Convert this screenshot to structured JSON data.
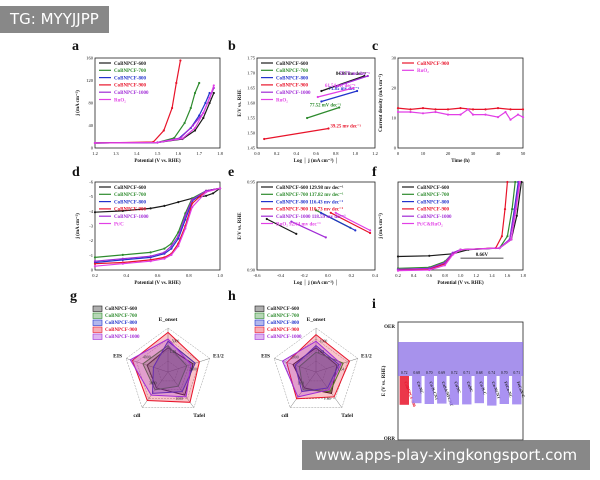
{
  "watermark": {
    "top": "TG: MYYJJPP",
    "bottom": "www.apps-play-xingkongsport.com"
  },
  "palette": {
    "c600": "#1a1a1a",
    "c700": "#2e8b2e",
    "c800": "#2233cc",
    "c900": "#e8142a",
    "c1000": "#a12bd6",
    "ref": "#e23fe6",
    "cyan": "#2ab7d6"
  },
  "chart_data": [
    {
      "panel": "a",
      "type": "line",
      "xlabel": "Potential (V vs. RHE)",
      "ylabel": "j (mA cm⁻²)",
      "xlim": [
        1.2,
        1.8
      ],
      "ylim": [
        -10,
        170
      ],
      "xticks": [
        "1.2",
        "1.3",
        "1.4",
        "1.5",
        "1.6",
        "1.7",
        "1.8"
      ],
      "yticks": [
        "0",
        "40",
        "80",
        "120",
        "160"
      ],
      "series": [
        {
          "name": "CoBNPCF-600",
          "x": [
            1.2,
            1.5,
            1.62,
            1.68,
            1.72,
            1.75,
            1.77
          ],
          "y": [
            0,
            1,
            8,
            25,
            50,
            80,
            100
          ]
        },
        {
          "name": "CoBNPCF-700",
          "x": [
            1.2,
            1.5,
            1.58,
            1.63,
            1.66,
            1.68,
            1.7
          ],
          "y": [
            0,
            1,
            10,
            40,
            70,
            100,
            120
          ]
        },
        {
          "name": "CoBNPCF-800",
          "x": [
            1.2,
            1.5,
            1.6,
            1.66,
            1.7,
            1.73,
            1.75
          ],
          "y": [
            0,
            1,
            8,
            30,
            55,
            80,
            100
          ]
        },
        {
          "name": "CoBNPCF-900",
          "x": [
            1.2,
            1.48,
            1.53,
            1.57,
            1.59,
            1.61
          ],
          "y": [
            0,
            2,
            25,
            70,
            120,
            165
          ]
        },
        {
          "name": "CoBNPCF-1000",
          "x": [
            1.2,
            1.5,
            1.61,
            1.67,
            1.72,
            1.75,
            1.77
          ],
          "y": [
            0,
            1,
            10,
            35,
            60,
            90,
            110
          ]
        },
        {
          "name": "RuO₂",
          "x": [
            1.2,
            1.5,
            1.62,
            1.68,
            1.72,
            1.75,
            1.77
          ],
          "y": [
            0,
            1,
            9,
            30,
            60,
            90,
            115
          ]
        }
      ]
    },
    {
      "panel": "b",
      "type": "line",
      "xlabel": "Log │ j (mA cm⁻²) │",
      "ylabel": "E/V vs. RHE",
      "xlim": [
        -0.3,
        1.35
      ],
      "ylim": [
        1.45,
        1.75
      ],
      "xticks": [
        "0.0",
        "0.2",
        "0.4",
        "0.6",
        "0.8",
        "1.0",
        "1.2"
      ],
      "yticks": [
        "1.45",
        "1.50",
        "1.55",
        "1.60",
        "1.65",
        "1.70",
        "1.75"
      ],
      "series": [
        {
          "name": "CoBNPCF-600",
          "x": [
            0.6,
            1.2
          ],
          "y": [
            1.64,
            1.69
          ],
          "label": "84.68 mv dec⁻¹"
        },
        {
          "name": "CoBNPCF-700",
          "x": [
            0.4,
            0.85
          ],
          "y": [
            1.55,
            1.585
          ],
          "label": "77.52 mV dec⁻¹"
        },
        {
          "name": "CoBNPCF-800",
          "x": [
            0.6,
            1.1
          ],
          "y": [
            1.605,
            1.64
          ],
          "label": "71.85 mv dec⁻¹"
        },
        {
          "name": "CoBNPCF-900",
          "x": [
            -0.2,
            0.7
          ],
          "y": [
            1.48,
            1.515
          ],
          "label": "39.25 mv dec⁻¹"
        },
        {
          "name": "CoBNPCF-1000",
          "x": [
            0.8,
            1.25
          ],
          "y": [
            1.655,
            1.69
          ],
          "label": "73.75 mv dec⁻¹"
        },
        {
          "name": "RuO₂",
          "x": [
            0.55,
            1.05
          ],
          "y": [
            1.62,
            1.65
          ],
          "label": "61.54 mv dec⁻¹"
        }
      ]
    },
    {
      "panel": "c",
      "type": "line",
      "xlabel": "Time (h)",
      "ylabel": "Current density (mA cm⁻²)",
      "xlim": [
        0,
        50
      ],
      "ylim": [
        -5,
        30
      ],
      "xticks": [
        "0",
        "10",
        "20",
        "30",
        "40",
        "50"
      ],
      "yticks": [
        "0",
        "10",
        "20",
        "30"
      ],
      "series": [
        {
          "name": "CoBNPCF-900",
          "x": [
            0,
            5,
            10,
            15,
            20,
            25,
            30,
            35,
            40,
            45,
            50
          ],
          "y": [
            10.5,
            10,
            10.5,
            10,
            10,
            10.5,
            10,
            10,
            10.5,
            10,
            10
          ]
        },
        {
          "name": "RuO₂",
          "x": [
            0,
            5,
            10,
            15,
            20,
            25,
            28,
            30,
            35,
            40,
            43,
            45,
            48,
            50
          ],
          "y": [
            9,
            9,
            8.5,
            9,
            8,
            8,
            10,
            8,
            8,
            7,
            9,
            6,
            8,
            7
          ]
        }
      ]
    },
    {
      "panel": "d",
      "type": "line",
      "xlabel": "Potential (V vs. RHE)",
      "ylabel": "j (mA cm⁻²)",
      "xlim": [
        0.2,
        1.1
      ],
      "ylim": [
        -6.5,
        0.5
      ],
      "xticks": [
        "0.2",
        "0.4",
        "0.6",
        "0.8",
        "1.0"
      ],
      "yticks": [
        "0",
        "-1",
        "-2",
        "-3",
        "-4",
        "-5",
        "-6"
      ],
      "series": [
        {
          "name": "CoBNPCF-600",
          "x": [
            0.2,
            0.4,
            0.6,
            0.7,
            0.8,
            0.9,
            1.0,
            1.05,
            1.1
          ],
          "y": [
            -1.9,
            -1.8,
            -1.6,
            -1.4,
            -1.1,
            -0.8,
            -0.6,
            -0.4,
            0
          ]
        },
        {
          "name": "CoBNPCF-700",
          "x": [
            0.2,
            0.4,
            0.6,
            0.7,
            0.75,
            0.8,
            0.85,
            0.9,
            1.0,
            1.1
          ],
          "y": [
            -5.5,
            -5.3,
            -5.1,
            -4.8,
            -4.4,
            -3.5,
            -2.0,
            -0.8,
            -0.2,
            0
          ]
        },
        {
          "name": "CoBNPCF-800",
          "x": [
            0.2,
            0.4,
            0.6,
            0.7,
            0.75,
            0.8,
            0.85,
            0.9,
            1.0,
            1.1
          ],
          "y": [
            -5.9,
            -5.7,
            -5.5,
            -5.2,
            -4.8,
            -4.0,
            -2.5,
            -1.0,
            -0.2,
            0
          ]
        },
        {
          "name": "CoBNPCF-900",
          "x": [
            0.2,
            0.4,
            0.6,
            0.7,
            0.75,
            0.8,
            0.85,
            0.9,
            1.0,
            1.1
          ],
          "y": [
            -6.0,
            -5.9,
            -5.7,
            -5.5,
            -5.2,
            -4.4,
            -3.0,
            -1.2,
            -0.2,
            0
          ]
        },
        {
          "name": "CoBNPCF-1000",
          "x": [
            0.2,
            0.4,
            0.6,
            0.7,
            0.75,
            0.8,
            0.85,
            0.9,
            1.0,
            1.1
          ],
          "y": [
            -5.8,
            -5.6,
            -5.4,
            -5.1,
            -4.6,
            -3.8,
            -2.2,
            -0.9,
            -0.2,
            0
          ]
        },
        {
          "name": "Pt/C",
          "x": [
            0.2,
            0.4,
            0.6,
            0.7,
            0.75,
            0.8,
            0.85,
            0.9,
            1.0,
            1.1
          ],
          "y": [
            -6.2,
            -6.0,
            -5.8,
            -5.6,
            -5.3,
            -4.6,
            -3.2,
            -1.5,
            -0.3,
            0
          ]
        }
      ]
    },
    {
      "panel": "e",
      "type": "line",
      "xlabel": "Log │ j (mA cm⁻²) │",
      "ylabel": "E/V vs. RHE",
      "xlim": [
        -0.7,
        0.5
      ],
      "ylim": [
        0.86,
        0.96
      ],
      "xticks": [
        "-0.6",
        "-0.4",
        "-0.2",
        "0.0",
        "0.2",
        "0.4"
      ],
      "yticks": [
        "0.90",
        "0.95"
      ],
      "series": [
        {
          "name": "CoBNPCF-600",
          "x": [
            -0.6,
            -0.3
          ],
          "y": [
            0.918,
            0.901
          ],
          "label": "CoBNPCF-600 129.98 mv dec⁻¹"
        },
        {
          "name": "CoBNPCF-700",
          "x": [
            -0.1,
            0.25
          ],
          "y": [
            0.928,
            0.908
          ],
          "label": "CoBNPCF-700 137.82 mv dec⁻¹"
        },
        {
          "name": "CoBNPCF-800",
          "x": [
            -0.05,
            0.3
          ],
          "y": [
            0.925,
            0.905
          ],
          "label": "CoBNPCF-800 116.43 mv dec⁻¹"
        },
        {
          "name": "CoBNPCF-900",
          "x": [
            0.05,
            0.45
          ],
          "y": [
            0.925,
            0.902
          ],
          "label": "CoBNPCF-900 110.73 mv dec⁻¹"
        },
        {
          "name": "CoBNPCF-1000",
          "x": [
            -0.35,
            0.0
          ],
          "y": [
            0.915,
            0.897
          ],
          "label": "CoBNPCF-1000 118.59 mv dec⁻¹"
        },
        {
          "name": "RuO₂",
          "x": [
            0.1,
            0.45
          ],
          "y": [
            0.925,
            0.905
          ],
          "label": "RuO₂ 92.64 mv dec⁻¹"
        }
      ]
    },
    {
      "panel": "f",
      "type": "line",
      "xlabel": "Potential (V vs. RHE)",
      "ylabel": "j (mA cm⁻²)",
      "xlim": [
        0.2,
        1.8
      ],
      "ylim": [
        -6,
        20
      ],
      "xticks": [
        "0.2",
        "0.4",
        "0.6",
        "0.8",
        "1.0",
        "1.2",
        "1.4",
        "1.6",
        "1.8"
      ],
      "yticks": [],
      "annotation": "0.66V",
      "series": [
        {
          "name": "CoBNPCF-600",
          "x": [
            0.2,
            0.6,
            0.9,
            1.1,
            1.5,
            1.65,
            1.72,
            1.78
          ],
          "y": [
            -2,
            -1.8,
            -1.2,
            0,
            0.5,
            3,
            10,
            20
          ]
        },
        {
          "name": "CoBNPCF-700",
          "x": [
            0.2,
            0.6,
            0.8,
            0.9,
            1.0,
            1.5,
            1.6,
            1.66,
            1.7
          ],
          "y": [
            -5.5,
            -5.2,
            -3.5,
            -1,
            0,
            0.5,
            4,
            12,
            20
          ]
        },
        {
          "name": "CoBNPCF-800",
          "x": [
            0.2,
            0.6,
            0.8,
            0.9,
            1.0,
            1.5,
            1.63,
            1.69,
            1.74
          ],
          "y": [
            -5.9,
            -5.6,
            -4,
            -1,
            0,
            0.5,
            3,
            12,
            20
          ]
        },
        {
          "name": "CoBNPCF-900",
          "x": [
            0.2,
            0.6,
            0.8,
            0.9,
            1.0,
            1.45,
            1.53,
            1.57,
            1.6
          ],
          "y": [
            -6,
            -5.8,
            -4.2,
            -1.2,
            0,
            0.5,
            4,
            12,
            20
          ]
        },
        {
          "name": "CoBNPCF-1000",
          "x": [
            0.2,
            0.6,
            0.8,
            0.9,
            1.0,
            1.5,
            1.63,
            1.7,
            1.75
          ],
          "y": [
            -5.8,
            -5.5,
            -3.8,
            -0.9,
            0,
            0.5,
            3,
            12,
            20
          ]
        },
        {
          "name": "Pt/C&RuO₂",
          "x": [
            0.2,
            0.6,
            0.8,
            0.9,
            1.0,
            1.5,
            1.65,
            1.71,
            1.76
          ],
          "y": [
            -6.2,
            -6,
            -4.6,
            -1.5,
            0,
            0.5,
            3,
            12,
            20
          ]
        }
      ]
    },
    {
      "panel": "g",
      "type": "radar",
      "axes": [
        "E_onset",
        "E1/2",
        "Tafel",
        "cdl",
        "EIS"
      ],
      "tick_labels": [
        "1.40",
        "2000",
        "1000",
        "3000",
        "4000",
        "5000",
        "0.88",
        "0.90",
        "0.92",
        "0.80",
        "0.78",
        "30",
        "60",
        "90",
        "120",
        "15",
        "10"
      ],
      "series": [
        {
          "name": "CoBNPCF-600",
          "values": [
            0.55,
            0.6,
            0.65,
            0.45,
            0.5
          ]
        },
        {
          "name": "CoBNPCF-700",
          "values": [
            0.6,
            0.45,
            0.4,
            0.5,
            0.6
          ]
        },
        {
          "name": "CoBNPCF-800",
          "values": [
            0.7,
            0.65,
            0.55,
            0.6,
            0.35
          ]
        },
        {
          "name": "CoBNPCF-900",
          "values": [
            0.9,
            0.75,
            0.85,
            0.8,
            0.85
          ]
        },
        {
          "name": "CoBNPCF-1000",
          "values": [
            0.75,
            0.55,
            0.7,
            0.65,
            0.9
          ]
        }
      ]
    },
    {
      "panel": "h",
      "type": "radar",
      "axes": [
        "E_onset",
        "E1/2",
        "Tafel",
        "cdl",
        "EIS"
      ],
      "tick_labels": [
        "1.62",
        "1.64",
        "1.66",
        "1.60",
        "2000",
        "1000",
        "1.70",
        "1.50",
        "1.40",
        "40",
        "80",
        "120",
        "15",
        "10"
      ],
      "series": [
        {
          "name": "CoBNPCF-600",
          "values": [
            0.55,
            0.5,
            0.6,
            0.45,
            0.55
          ]
        },
        {
          "name": "CoBNPCF-700",
          "values": [
            0.45,
            0.65,
            0.55,
            0.5,
            0.4
          ]
        },
        {
          "name": "CoBNPCF-800",
          "values": [
            0.6,
            0.55,
            0.45,
            0.55,
            0.5
          ]
        },
        {
          "name": "CoBNPCF-900",
          "values": [
            0.85,
            0.8,
            0.7,
            0.75,
            0.7
          ]
        },
        {
          "name": "CoBNPCF-1000",
          "values": [
            0.7,
            0.6,
            0.5,
            0.7,
            0.8
          ]
        }
      ]
    },
    {
      "panel": "i",
      "type": "bar",
      "ylabel": "E (V vs. RHE)",
      "top_label": "OER",
      "bottom_label": "ORR",
      "categories": [
        "CoBNPCF-900",
        "Co-NC",
        "Co-N-CNT",
        "CoSA/NPCNT",
        "Co/NC",
        "CoNC",
        "Co-N-C",
        "Co-NCNT",
        "FeCo-NC",
        "FeCoN-C"
      ],
      "values": [
        0.72,
        0.68,
        0.7,
        0.69,
        0.72,
        0.71,
        0.68,
        0.74,
        0.7,
        0.71
      ]
    }
  ],
  "panels": {
    "a": {
      "letter": "a",
      "legend": [
        "CoBNPCF-600",
        "CoBNPCF-700",
        "CoBNPCF-800",
        "CoBNPCF-900",
        "CoBNPCF-1000",
        "RuO₂"
      ]
    },
    "b": {
      "letter": "b",
      "legend": [
        "CoBNPCF-600",
        "CoBNPCF-700",
        "CoBNPCF-800",
        "CoBNPCF-900",
        "CoBNPCF-1000",
        "RuO₂"
      ]
    },
    "c": {
      "letter": "c",
      "legend": [
        "CoBNPCF-900",
        "RuO₂"
      ]
    },
    "d": {
      "letter": "d",
      "legend": [
        "CoBNPCF-600",
        "CoBNPCF-700",
        "CoBNPCF-800",
        "CoBNPCF-900",
        "CoBNPCF-1000",
        "Pt/C"
      ]
    },
    "e": {
      "letter": "e",
      "legend": [
        "CoBNPCF-600 129.98 mv dec⁻¹",
        "CoBNPCF-700 137.82 mv dec⁻¹",
        "CoBNPCF-800 116.43 mv dec⁻¹",
        "CoBNPCF-900 110.73 mv dec⁻¹",
        "CoBNPCF-1000 118.59 mv dec⁻¹",
        "RuO₂ 92.64 mv dec⁻¹"
      ]
    },
    "f": {
      "letter": "f",
      "legend": [
        "CoBNPCF-600",
        "CoBNPCF-700",
        "CoBNPCF-800",
        "CoBNPCF-900",
        "CoBNPCF-1000",
        "Pt/C&RuO₂"
      ]
    },
    "g": {
      "letter": "g",
      "legend": [
        "CoBNPCF-600",
        "CoBNPCF-700",
        "CoBNPCF-800",
        "CoBNPCF-900",
        "CoBNPCF-1000"
      ]
    },
    "h": {
      "letter": "h",
      "legend": [
        "CoBNPCF-600",
        "CoBNPCF-700",
        "CoBNPCF-800",
        "CoBNPCF-900",
        "CoBNPCF-1000"
      ]
    },
    "i": {
      "letter": "i"
    }
  }
}
